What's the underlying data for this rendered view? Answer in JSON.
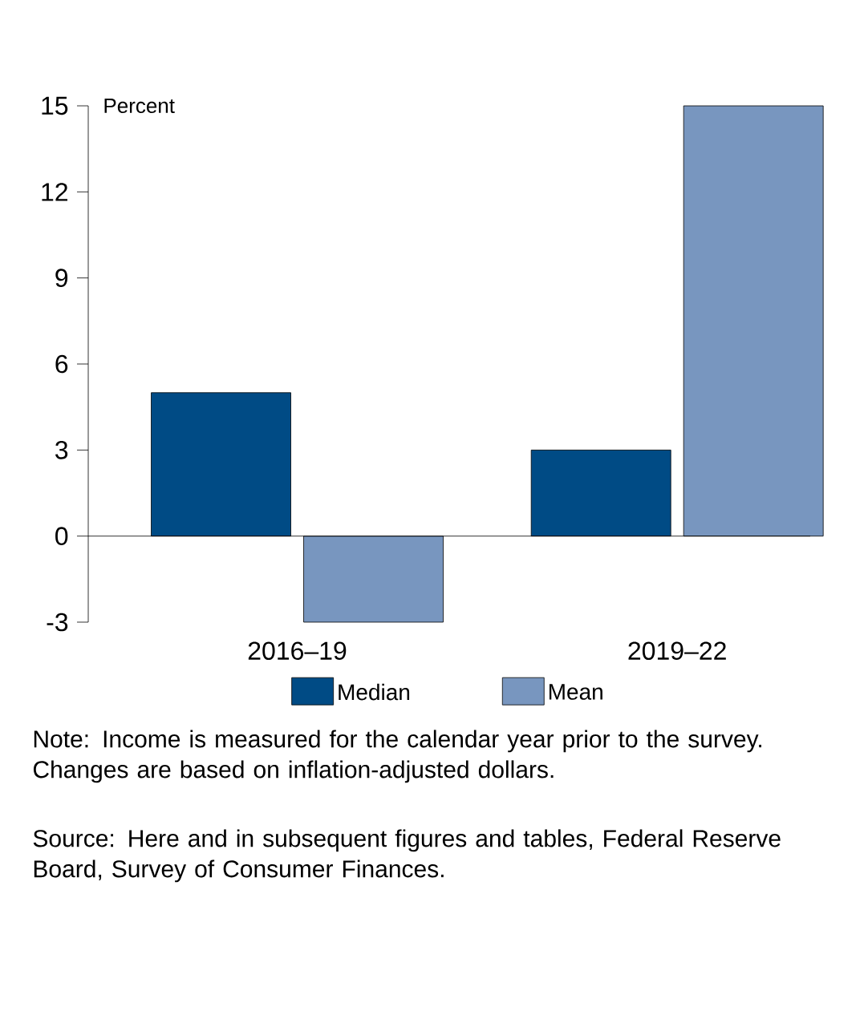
{
  "chart_data": {
    "type": "bar",
    "categories": [
      "2016–19",
      "2019–22"
    ],
    "series": [
      {
        "name": "Median",
        "color": "#004b85",
        "values": [
          5,
          3
        ]
      },
      {
        "name": "Mean",
        "color": "#7896bf",
        "values": [
          -3,
          15
        ]
      }
    ],
    "ylabel": "Percent",
    "ylim": [
      -3,
      15
    ],
    "yticks": [
      -3,
      0,
      3,
      6,
      9,
      12,
      15
    ],
    "legend": "bottom",
    "annotations": [
      "Note: Income is measured for the calendar year prior to the survey. Changes are based on inflation-adjusted dollars.",
      "Source: Here and in subsequent figures and tables, Federal Reserve Board, Survey of Consumer Finances."
    ]
  }
}
